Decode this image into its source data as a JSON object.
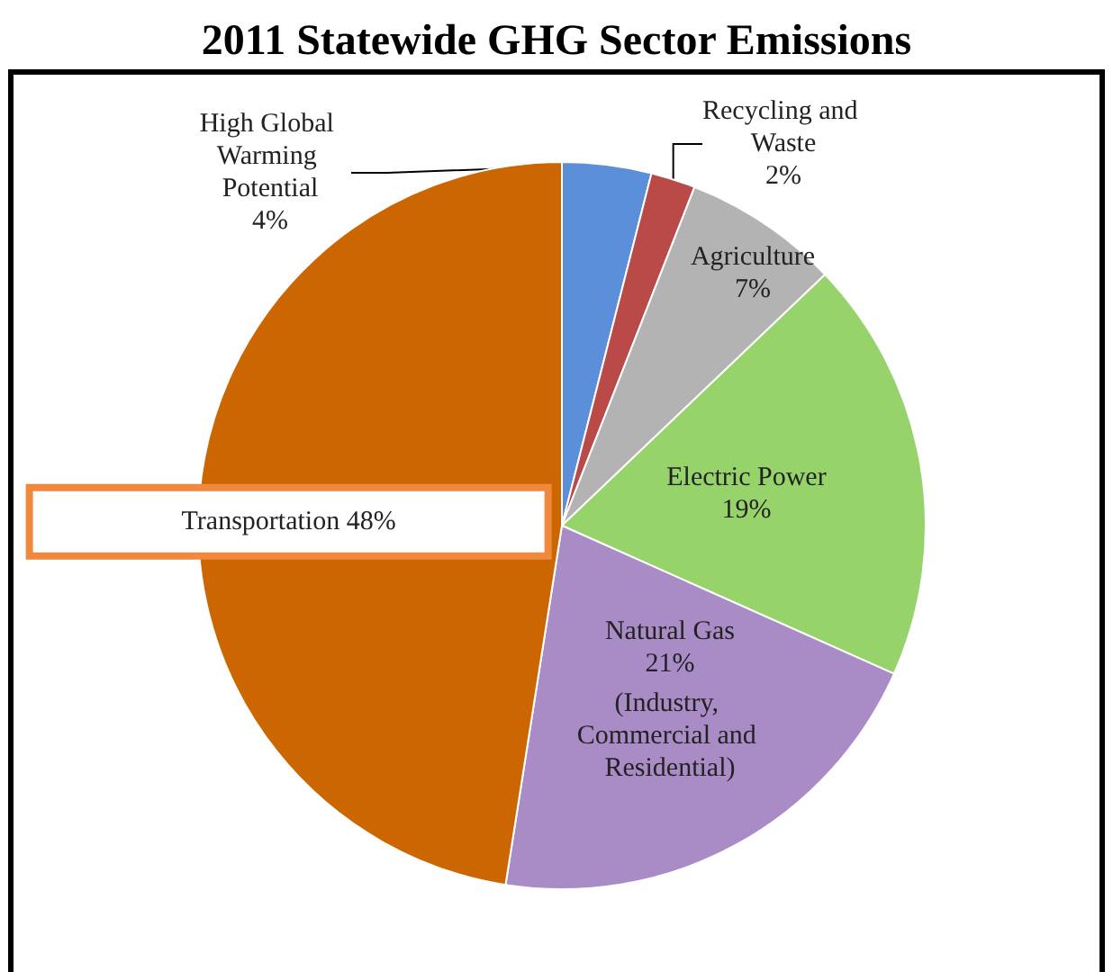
{
  "chart_data": {
    "type": "pie",
    "title": "2011 Statewide GHG Sector Emissions",
    "categories": [
      "High Global Warming Potential",
      "Recycling and Waste",
      "Agriculture",
      "Electric Power",
      "Natural Gas",
      "Transportation"
    ],
    "values": [
      4,
      2,
      7,
      19,
      21,
      48
    ],
    "value_labels": [
      "4%",
      "2%",
      "7%",
      "19%",
      "21%",
      "48%"
    ],
    "colors": [
      "#5b8fd9",
      "#b94a48",
      "#b3b3b3",
      "#97d36b",
      "#a98bc6",
      "#cc6600"
    ],
    "annotations": [
      "(Industry, Commercial and Residential)"
    ],
    "legend": false
  }
}
